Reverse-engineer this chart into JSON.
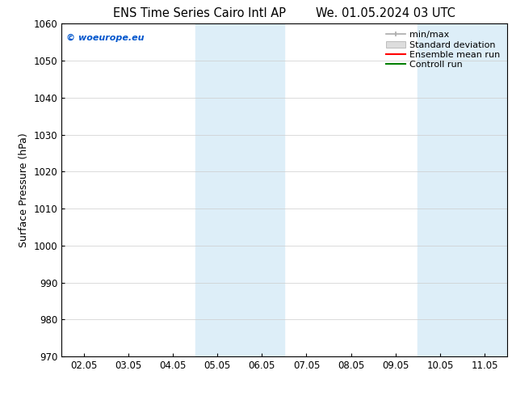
{
  "title_left": "ENS Time Series Cairo Intl AP",
  "title_right": "We. 01.05.2024 03 UTC",
  "ylabel": "Surface Pressure (hPa)",
  "ylim": [
    970,
    1060
  ],
  "yticks": [
    970,
    980,
    990,
    1000,
    1010,
    1020,
    1030,
    1040,
    1050,
    1060
  ],
  "xtick_labels": [
    "02.05",
    "03.05",
    "04.05",
    "05.05",
    "06.05",
    "07.05",
    "08.05",
    "09.05",
    "10.05",
    "11.05"
  ],
  "xtick_positions": [
    0,
    1,
    2,
    3,
    4,
    5,
    6,
    7,
    8,
    9
  ],
  "xlim": [
    -0.5,
    9.5
  ],
  "shaded_regions": [
    {
      "xmin": 2,
      "xmax": 3,
      "color": "#ddeef8"
    },
    {
      "xmin": 3,
      "xmax": 4,
      "color": "#ddeef8"
    },
    {
      "xmin": 7,
      "xmax": 8,
      "color": "#ddeef8"
    },
    {
      "xmin": 8,
      "xmax": 9,
      "color": "#ddeef8"
    }
  ],
  "watermark_text": "© woeurope.eu",
  "watermark_color": "#0055cc",
  "bg_color": "#ffffff",
  "plot_bg_color": "#ffffff",
  "grid_color": "#cccccc",
  "title_fontsize": 10.5,
  "label_fontsize": 9,
  "tick_fontsize": 8.5,
  "legend_fontsize": 8
}
